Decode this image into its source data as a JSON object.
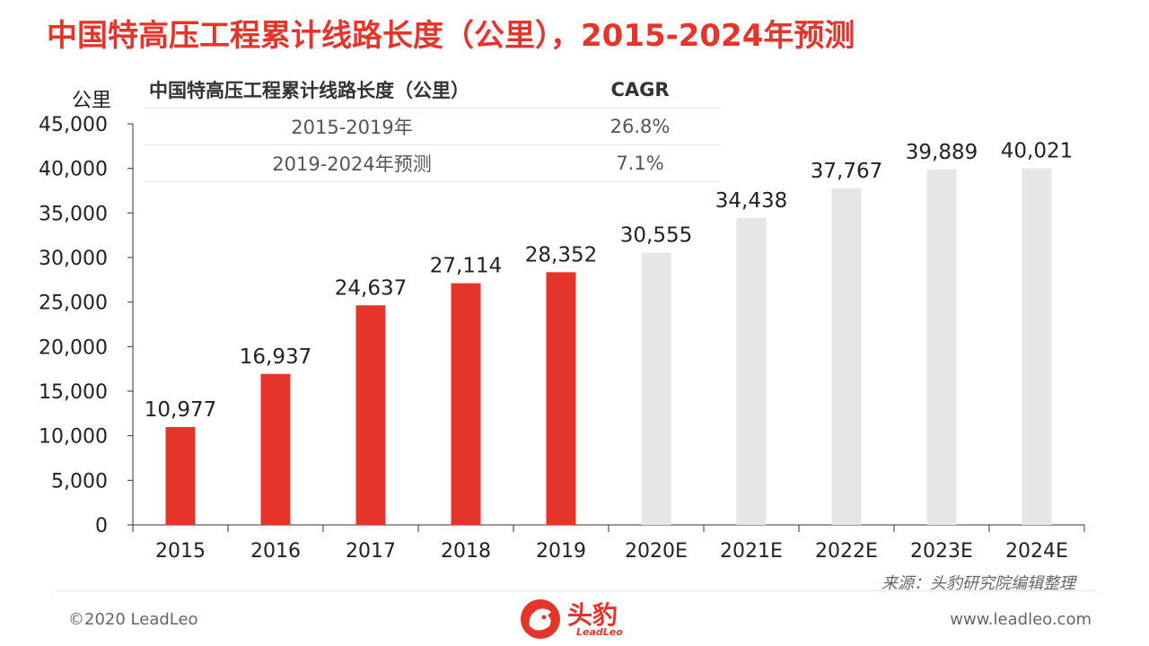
{
  "title": "中国特高压工程累计线路长度（公里），2015-2024年预测",
  "unit_label": "公里",
  "cagr_table": {
    "header": [
      "中国特高压工程累计线路长度（公里）",
      "CAGR"
    ],
    "rows": [
      {
        "period": "2015-2019年",
        "value": "26.8%"
      },
      {
        "period": "2019-2024年预测",
        "value": "7.1%"
      }
    ]
  },
  "chart_data": {
    "type": "bar",
    "categories": [
      "2015",
      "2016",
      "2017",
      "2018",
      "2019",
      "2020E",
      "2021E",
      "2022E",
      "2023E",
      "2024E"
    ],
    "values": [
      10977,
      16937,
      24637,
      27114,
      28352,
      30555,
      34438,
      37767,
      39889,
      40021
    ],
    "value_labels": [
      "10,977",
      "16,937",
      "24,637",
      "27,114",
      "28,352",
      "30,555",
      "34,438",
      "37,767",
      "39,889",
      "40,021"
    ],
    "forecast": [
      false,
      false,
      false,
      false,
      false,
      true,
      true,
      true,
      true,
      true
    ],
    "ylim": [
      0,
      45000
    ],
    "yticks": [
      0,
      5000,
      10000,
      15000,
      20000,
      25000,
      30000,
      35000,
      40000,
      45000
    ],
    "ytick_labels": [
      "0",
      "5,000",
      "10,000",
      "15,000",
      "20,000",
      "25,000",
      "30,000",
      "35,000",
      "40,000",
      "45,000"
    ],
    "colors": {
      "actual": "#e5352b",
      "forecast": "#e6e6e6"
    },
    "grid": false
  },
  "source": "来源：头豹研究院编辑整理",
  "footer": {
    "copyright": "©2020 LeadLeo",
    "website": "www.leadleo.com"
  },
  "logo": {
    "name": "头豹",
    "sub": "LeadLeo"
  }
}
